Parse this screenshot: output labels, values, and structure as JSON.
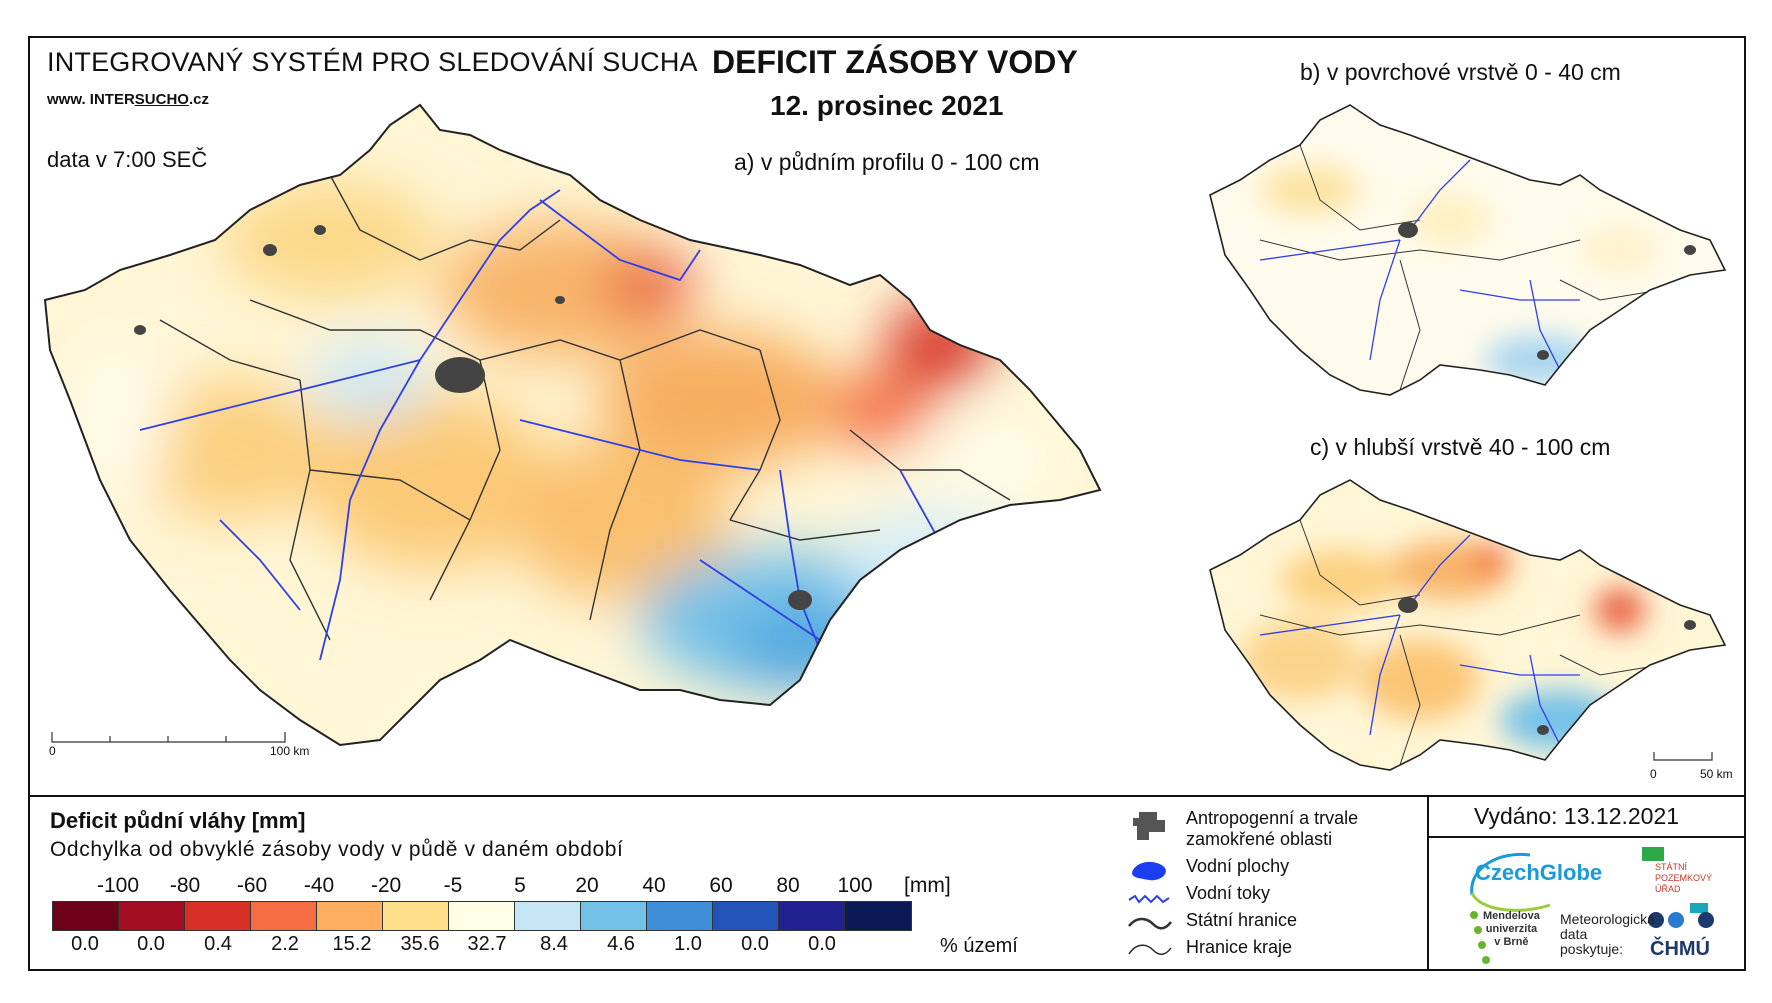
{
  "header": {
    "system_title": "INTEGROVANÝ SYSTÉM PRO SLEDOVÁNÍ SUCHA",
    "web_prefix": "www. INTER",
    "web_brand": "SUCHO",
    "web_suffix": ".cz",
    "data_time": "data v 7:00 SEČ",
    "main_title": "DEFICIT ZÁSOBY VODY",
    "date": "12. prosinec 2021"
  },
  "maps": {
    "a_label": "a) v půdním profilu 0 - 100 cm",
    "b_label": "b) v povrchové vrstvě 0 - 40 cm",
    "c_label": "c) v hlubší vrstvě 40 - 100 cm",
    "scale_a": {
      "start": "0",
      "end": "100 km"
    },
    "scale_c": {
      "start": "0",
      "end": "50 km"
    }
  },
  "legend": {
    "title": "Deficit půdní vláhy  [mm]",
    "subtitle": "Odchylka od obvyklé zásoby vody v půdě v daném období",
    "ticks": [
      "-100",
      "-80",
      "-60",
      "-40",
      "-20",
      "-5",
      "5",
      "20",
      "40",
      "60",
      "80",
      "100"
    ],
    "unit": "[mm]",
    "colors": [
      "#6b0016",
      "#a30d22",
      "#d73027",
      "#f46d43",
      "#fdae61",
      "#fee08b",
      "#ffffe5",
      "#c6e6f5",
      "#74c1e8",
      "#3f8fd8",
      "#2153b8",
      "#202090",
      "#0a1a55"
    ],
    "percent_values": [
      "0.0",
      "0.0",
      "0.4",
      "2.2",
      "15.2",
      "35.6",
      "32.7",
      "8.4",
      "4.6",
      "1.0",
      "0.0",
      "0.0"
    ],
    "percent_label": "% území"
  },
  "symbols": {
    "items": [
      {
        "icon": "urban-area-icon",
        "label": "Antropogenní a trvale\nzamokřené oblasti"
      },
      {
        "icon": "water-body-icon",
        "label": "Vodní plochy"
      },
      {
        "icon": "river-icon",
        "label": "Vodní toky"
      },
      {
        "icon": "state-border-icon",
        "label": "Státní hranice"
      },
      {
        "icon": "region-border-icon",
        "label": "Hranice kraje"
      }
    ]
  },
  "footer": {
    "issued": "Vydáno: 13.12.2021",
    "czechglobe": "CzechGlobe",
    "spu": "STÁTNÍ\nPOZEMKOVÝ\nÚŘAD",
    "mendelu": "Mendelova\nuniverzita\nv Brně",
    "met_data": "Meteorologická\ndata\nposkytuje:",
    "chmu": "ČHMÚ"
  }
}
